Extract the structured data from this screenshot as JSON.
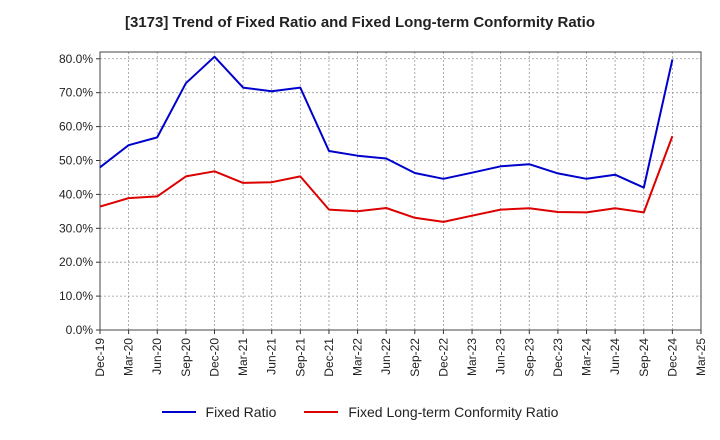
{
  "chart_data": {
    "type": "line",
    "title": "[3173]  Trend of Fixed Ratio and Fixed Long-term Conformity Ratio",
    "x": [
      "Dec-19",
      "Mar-20",
      "Jun-20",
      "Sep-20",
      "Dec-20",
      "Mar-21",
      "Jun-21",
      "Sep-21",
      "Dec-21",
      "Mar-22",
      "Jun-22",
      "Sep-22",
      "Dec-22",
      "Mar-23",
      "Jun-23",
      "Sep-23",
      "Dec-23",
      "Mar-24",
      "Jun-24",
      "Sep-24",
      "Dec-24",
      "Mar-25"
    ],
    "y_ticks": [
      "0.0%",
      "10.0%",
      "20.0%",
      "30.0%",
      "40.0%",
      "50.0%",
      "60.0%",
      "70.0%",
      "80.0%"
    ],
    "ylim": [
      0,
      82
    ],
    "grid": true,
    "legend_position": "bottom",
    "series": [
      {
        "name": "Fixed Ratio",
        "color": "#0000cc",
        "values": [
          48.0,
          54.5,
          56.8,
          72.8,
          80.6,
          71.5,
          70.4,
          71.5,
          52.8,
          51.4,
          50.6,
          46.3,
          44.6,
          46.4,
          48.3,
          48.9,
          46.2,
          44.6,
          45.8,
          42.0,
          79.8,
          null
        ]
      },
      {
        "name": "Fixed Long-term Conformity Ratio",
        "color": "#dd0000",
        "values": [
          36.4,
          38.9,
          39.4,
          45.3,
          46.8,
          43.4,
          43.6,
          45.3,
          35.5,
          35.0,
          36.0,
          33.1,
          31.9,
          33.7,
          35.5,
          35.9,
          34.8,
          34.7,
          35.9,
          34.7,
          57.2,
          null
        ]
      }
    ]
  }
}
